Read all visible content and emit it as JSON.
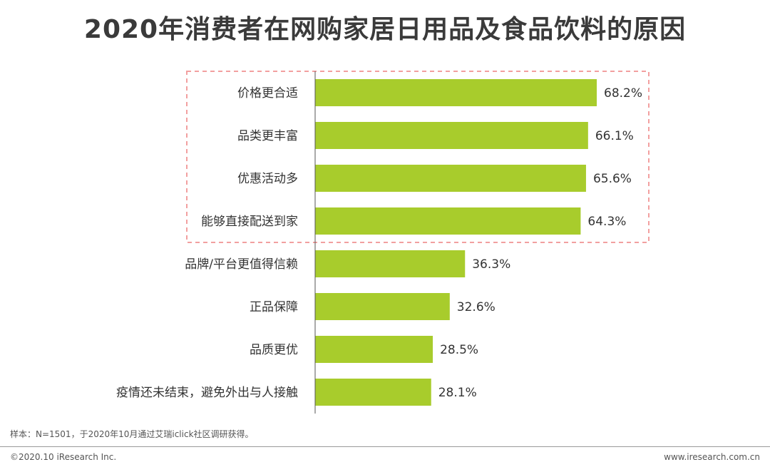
{
  "chart_data": {
    "type": "bar",
    "title": "2020年消费者在网购家居日用品及食品饮料的原因",
    "categories": [
      "价格更合适",
      "品类更丰富",
      "优惠活动多",
      "能够直接配送到家",
      "品牌/平台更值得信赖",
      "正品保障",
      "品质更优",
      "疫情还未结束，避免外出与人接触"
    ],
    "values": [
      68.2,
      66.1,
      65.6,
      64.3,
      36.3,
      32.6,
      28.5,
      28.1
    ],
    "value_labels": [
      "68.2%",
      "66.1%",
      "65.6%",
      "64.3%",
      "36.3%",
      "32.6%",
      "28.5%",
      "28.1%"
    ],
    "orientation": "horizontal",
    "xlim": [
      0,
      70
    ],
    "highlighted_top": 4,
    "grid": false,
    "colors": {
      "bar": "#a8cc2c",
      "highlight_border": "#f2a0a0",
      "axis": "#555555"
    }
  },
  "footer": {
    "note": "样本：N=1501，于2020年10月通过艾瑞iclick社区调研获得。",
    "copyright": "©2020.10 iResearch Inc.",
    "website": "www.iresearch.com.cn"
  }
}
